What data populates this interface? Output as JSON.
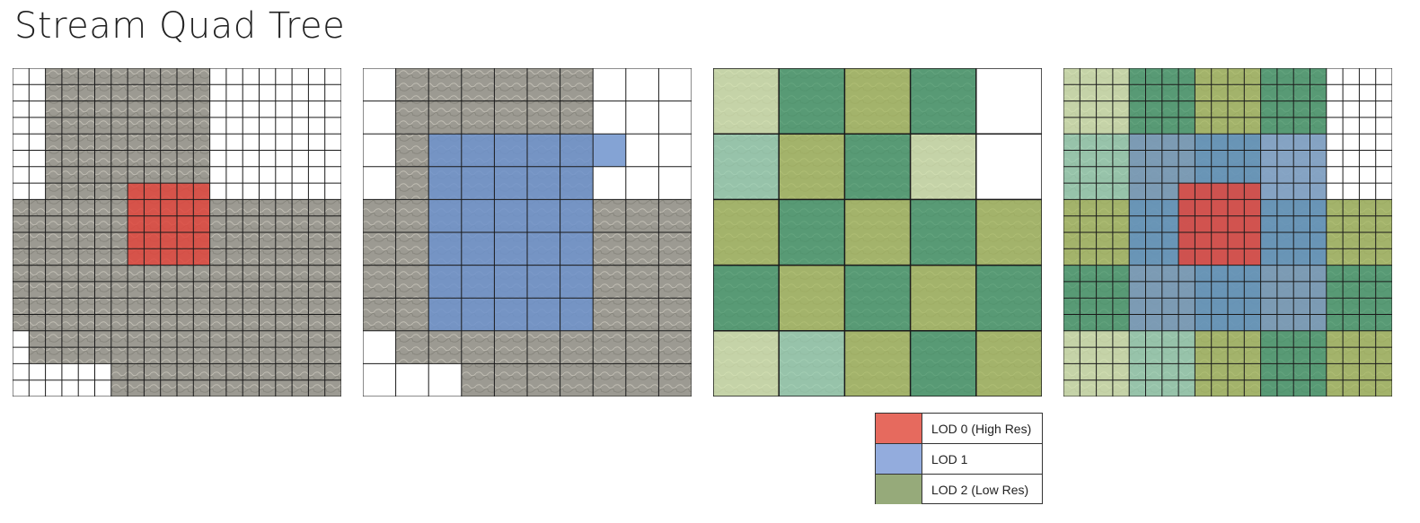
{
  "title": "Stream Quad Tree",
  "colors": {
    "terrain": "#9c9a92",
    "lod0": "#e0473d",
    "lod1": "#6f93cc",
    "lod2_green": "#3f9a6a",
    "lod2_olive": "#a6bd5c",
    "pale_green": "#d6e9b0",
    "mint": "#96d3b3",
    "line": "#1a1a1a"
  },
  "legend": [
    {
      "label": "LOD 0 (High Res)",
      "color": "#e66a5e"
    },
    {
      "label": "LOD 1",
      "color": "#93acdd"
    },
    {
      "label": "LOD 2 (Low Res)",
      "color": "#96aa7a"
    }
  ]
}
